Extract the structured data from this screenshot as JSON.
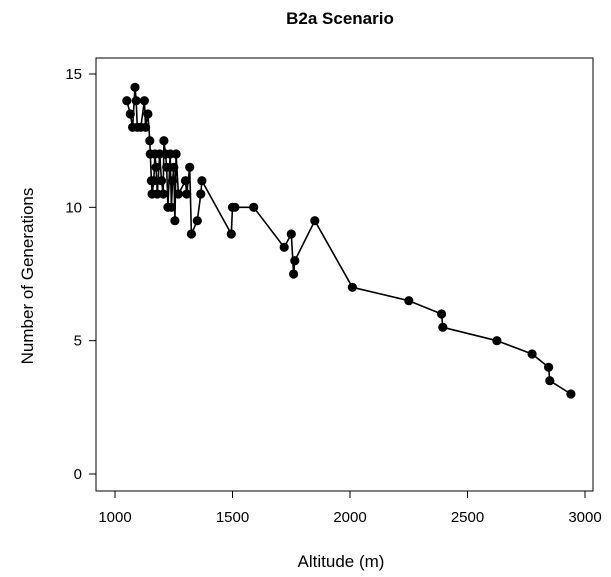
{
  "chart_data": {
    "type": "scatter",
    "title": "B2a Scenario",
    "xlabel": "Altitude (m)",
    "ylabel": "Number of Generations",
    "xlim": [
      1000,
      3000
    ],
    "ylim": [
      0,
      15
    ],
    "x_ticks": [
      1000,
      1500,
      2000,
      2500,
      3000
    ],
    "y_ticks": [
      0,
      5,
      10,
      15
    ],
    "x_tick_labels": [
      "1000",
      "1500",
      "2000",
      "2500",
      "3000"
    ],
    "y_tick_labels": [
      "0",
      "5",
      "10",
      "15"
    ],
    "grid": false,
    "legend": "none",
    "line_connects_points": true,
    "marker_color": "#000000",
    "line_color": "#000000",
    "series": [
      {
        "points": [
          [
            1050,
            14.0
          ],
          [
            1065,
            13.5
          ],
          [
            1075,
            13.0
          ],
          [
            1085,
            14.5
          ],
          [
            1090,
            14.0
          ],
          [
            1095,
            13.0
          ],
          [
            1110,
            13.0
          ],
          [
            1125,
            14.0
          ],
          [
            1130,
            13.0
          ],
          [
            1140,
            13.5
          ],
          [
            1148,
            12.5
          ],
          [
            1150,
            12.0
          ],
          [
            1155,
            11.0
          ],
          [
            1158,
            10.5
          ],
          [
            1165,
            11.0
          ],
          [
            1170,
            12.0
          ],
          [
            1175,
            11.5
          ],
          [
            1180,
            10.5
          ],
          [
            1190,
            12.0
          ],
          [
            1198,
            11.0
          ],
          [
            1205,
            10.5
          ],
          [
            1208,
            12.5
          ],
          [
            1215,
            12.0
          ],
          [
            1220,
            11.5
          ],
          [
            1225,
            10.0
          ],
          [
            1235,
            12.0
          ],
          [
            1240,
            10.0
          ],
          [
            1245,
            11.0
          ],
          [
            1250,
            11.5
          ],
          [
            1255,
            9.5
          ],
          [
            1260,
            12.0
          ],
          [
            1270,
            10.5
          ],
          [
            1300,
            11.0
          ],
          [
            1305,
            10.5
          ],
          [
            1318,
            11.5
          ],
          [
            1325,
            9.0
          ],
          [
            1350,
            9.5
          ],
          [
            1365,
            10.5
          ],
          [
            1370,
            11.0
          ],
          [
            1495,
            9.0
          ],
          [
            1500,
            10.0
          ],
          [
            1510,
            10.0
          ],
          [
            1590,
            10.0
          ],
          [
            1720,
            8.5
          ],
          [
            1750,
            9.0
          ],
          [
            1760,
            7.5
          ],
          [
            1765,
            8.0
          ],
          [
            1850,
            9.5
          ],
          [
            2010,
            7.0
          ],
          [
            2250,
            6.5
          ],
          [
            2390,
            6.0
          ],
          [
            2395,
            5.5
          ],
          [
            2625,
            5.0
          ],
          [
            2775,
            4.5
          ],
          [
            2845,
            4.0
          ],
          [
            2850,
            3.5
          ],
          [
            2940,
            3.0
          ]
        ]
      }
    ]
  }
}
